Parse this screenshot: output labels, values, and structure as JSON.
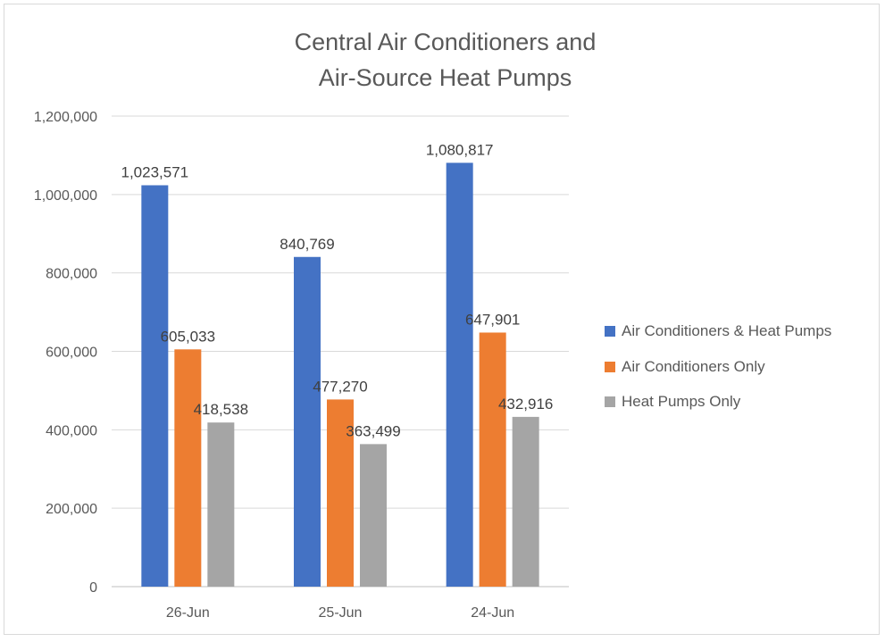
{
  "chart_data": {
    "type": "bar",
    "title_lines": [
      "Central Air Conditioners and",
      "Air-Source Heat Pumps"
    ],
    "categories": [
      "26-Jun",
      "25-Jun",
      "24-Jun"
    ],
    "series": [
      {
        "name": "Air Conditioners & Heat Pumps",
        "color": "#4472c4",
        "values": [
          1023571,
          840769,
          1080817
        ],
        "labels": [
          "1,023,571",
          "840,769",
          "1,080,817"
        ]
      },
      {
        "name": "Air Conditioners Only",
        "color": "#ed7d31",
        "values": [
          605033,
          477270,
          647901
        ],
        "labels": [
          "605,033",
          "477,270",
          "647,901"
        ]
      },
      {
        "name": "Heat Pumps Only",
        "color": "#a5a5a5",
        "values": [
          418538,
          363499,
          432916
        ],
        "labels": [
          "418,538",
          "363,499",
          "432,916"
        ]
      }
    ],
    "ylim": [
      0,
      1200000
    ],
    "yticks": [
      0,
      200000,
      400000,
      600000,
      800000,
      1000000,
      1200000
    ],
    "ytick_labels": [
      "0",
      "200,000",
      "400,000",
      "600,000",
      "800,000",
      "1,000,000",
      "1,200,000"
    ],
    "xlabel": "",
    "ylabel": "",
    "grid": true,
    "legend_position": "right"
  }
}
